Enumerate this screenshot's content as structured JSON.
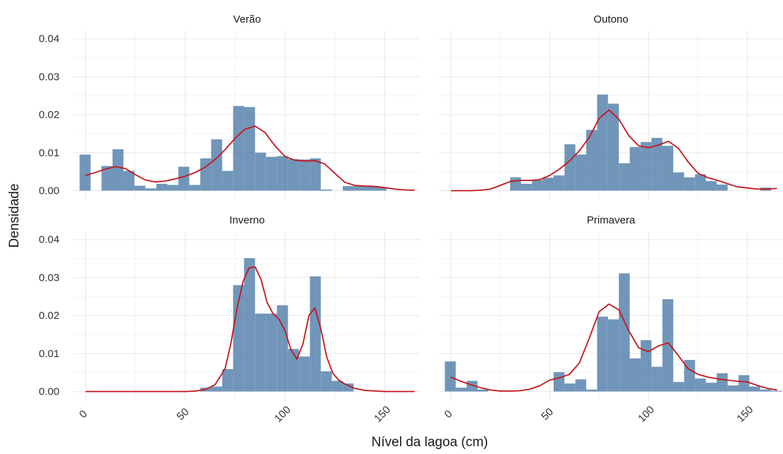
{
  "chart_data": {
    "type": "histogram",
    "xlabel": "Nível da lagoa (cm)",
    "ylabel": "Densidade",
    "xlim": [
      -6,
      168
    ],
    "ylim": [
      -0.0025,
      0.042
    ],
    "x_ticks": [
      0,
      50,
      100,
      150
    ],
    "y_ticks": [
      0.0,
      0.01,
      0.02,
      0.03,
      0.04
    ],
    "y_tick_labels": [
      "0.00",
      "0.01",
      "0.02",
      "0.03",
      "0.04"
    ],
    "bin_width": 5.5,
    "grid": true,
    "colors": {
      "bar": "#4e7ca8",
      "density": "#c4161c",
      "grid": "#ebebeb",
      "text": "#333333"
    },
    "panels": [
      {
        "title": "Verão",
        "bins": [
          {
            "x0": -3,
            "x1": 2.5,
            "y": 0.0095
          },
          {
            "x0": 2.5,
            "x1": 8,
            "y": 0
          },
          {
            "x0": 8,
            "x1": 13.5,
            "y": 0.0065
          },
          {
            "x0": 13.5,
            "x1": 19,
            "y": 0.0109
          },
          {
            "x0": 19,
            "x1": 24.5,
            "y": 0.0052
          },
          {
            "x0": 24.5,
            "x1": 30,
            "y": 0.0013
          },
          {
            "x0": 30,
            "x1": 35.5,
            "y": 0.0006
          },
          {
            "x0": 35.5,
            "x1": 41,
            "y": 0.0018
          },
          {
            "x0": 41,
            "x1": 46.5,
            "y": 0.0015
          },
          {
            "x0": 46.5,
            "x1": 52,
            "y": 0.0063
          },
          {
            "x0": 52,
            "x1": 57.5,
            "y": 0.0015
          },
          {
            "x0": 57.5,
            "x1": 63,
            "y": 0.0085
          },
          {
            "x0": 63,
            "x1": 68.5,
            "y": 0.0135
          },
          {
            "x0": 68.5,
            "x1": 74,
            "y": 0.0052
          },
          {
            "x0": 74,
            "x1": 79.5,
            "y": 0.0223
          },
          {
            "x0": 79.5,
            "x1": 85,
            "y": 0.022
          },
          {
            "x0": 85,
            "x1": 90.5,
            "y": 0.01
          },
          {
            "x0": 90.5,
            "x1": 96,
            "y": 0.0089
          },
          {
            "x0": 96,
            "x1": 101.5,
            "y": 0.0091
          },
          {
            "x0": 101.5,
            "x1": 107,
            "y": 0.0083
          },
          {
            "x0": 107,
            "x1": 112.5,
            "y": 0.0082
          },
          {
            "x0": 112.5,
            "x1": 118,
            "y": 0.0085
          },
          {
            "x0": 118,
            "x1": 123.5,
            "y": 0.0003
          },
          {
            "x0": 123.5,
            "x1": 129,
            "y": 0
          },
          {
            "x0": 129,
            "x1": 134.5,
            "y": 0.0012
          },
          {
            "x0": 134.5,
            "x1": 140,
            "y": 0.0012
          },
          {
            "x0": 140,
            "x1": 145.5,
            "y": 0.0011
          },
          {
            "x0": 145.5,
            "x1": 151,
            "y": 0.0009
          }
        ],
        "density": {
          "x": [
            0,
            5,
            10,
            15,
            20,
            25,
            30,
            35,
            40,
            45,
            50,
            55,
            60,
            65,
            70,
            75,
            80,
            85,
            90,
            95,
            100,
            105,
            110,
            115,
            120,
            125,
            130,
            135,
            140,
            145,
            150,
            155,
            160,
            165
          ],
          "y": [
            0.004,
            0.0048,
            0.0057,
            0.0063,
            0.0058,
            0.0042,
            0.0028,
            0.0023,
            0.0025,
            0.0031,
            0.0038,
            0.0048,
            0.0062,
            0.0082,
            0.0108,
            0.0138,
            0.0162,
            0.017,
            0.0153,
            0.0118,
            0.009,
            0.008,
            0.0078,
            0.0079,
            0.007,
            0.0046,
            0.0022,
            0.0014,
            0.0012,
            0.0011,
            0.0008,
            0.0004,
            0.0002,
            0.0001
          ]
        }
      },
      {
        "title": "Outono",
        "bins": [
          {
            "x0": 30,
            "x1": 35.5,
            "y": 0.0035
          },
          {
            "x0": 35.5,
            "x1": 41,
            "y": 0.0018
          },
          {
            "x0": 41,
            "x1": 46.5,
            "y": 0.0028
          },
          {
            "x0": 46.5,
            "x1": 52,
            "y": 0.0034
          },
          {
            "x0": 52,
            "x1": 57.5,
            "y": 0.004
          },
          {
            "x0": 57.5,
            "x1": 63,
            "y": 0.0122
          },
          {
            "x0": 63,
            "x1": 68.5,
            "y": 0.0095
          },
          {
            "x0": 68.5,
            "x1": 74,
            "y": 0.016
          },
          {
            "x0": 74,
            "x1": 79.5,
            "y": 0.0253
          },
          {
            "x0": 79.5,
            "x1": 85,
            "y": 0.0229
          },
          {
            "x0": 85,
            "x1": 90.5,
            "y": 0.0072
          },
          {
            "x0": 90.5,
            "x1": 96,
            "y": 0.0115
          },
          {
            "x0": 96,
            "x1": 101.5,
            "y": 0.0128
          },
          {
            "x0": 101.5,
            "x1": 107,
            "y": 0.0139
          },
          {
            "x0": 107,
            "x1": 112.5,
            "y": 0.0118
          },
          {
            "x0": 112.5,
            "x1": 118,
            "y": 0.0048
          },
          {
            "x0": 118,
            "x1": 123.5,
            "y": 0.0035
          },
          {
            "x0": 123.5,
            "x1": 129,
            "y": 0.0043
          },
          {
            "x0": 129,
            "x1": 134.5,
            "y": 0.0025
          },
          {
            "x0": 134.5,
            "x1": 140,
            "y": 0.0016
          },
          {
            "x0": 140,
            "x1": 145.5,
            "y": 0
          },
          {
            "x0": 145.5,
            "x1": 151,
            "y": 0
          },
          {
            "x0": 151,
            "x1": 156.5,
            "y": 0
          },
          {
            "x0": 156.5,
            "x1": 162,
            "y": 0.0008
          }
        ],
        "density": {
          "x": [
            0,
            5,
            10,
            15,
            20,
            25,
            30,
            35,
            40,
            45,
            50,
            55,
            60,
            65,
            70,
            75,
            80,
            85,
            90,
            95,
            100,
            105,
            110,
            115,
            120,
            125,
            130,
            135,
            140,
            145,
            150,
            155,
            160,
            165
          ],
          "y": [
            0.0,
            0.0,
            0.0,
            0.0001,
            0.0004,
            0.0014,
            0.0024,
            0.0027,
            0.0027,
            0.0029,
            0.004,
            0.0057,
            0.0078,
            0.0105,
            0.014,
            0.019,
            0.0212,
            0.0188,
            0.0145,
            0.0118,
            0.0113,
            0.012,
            0.013,
            0.0112,
            0.0076,
            0.0046,
            0.0034,
            0.0027,
            0.0018,
            0.001,
            0.0007,
            0.0004,
            0.0004,
            0.0006
          ]
        }
      },
      {
        "title": "Inverno",
        "bins": [
          {
            "x0": 57.5,
            "x1": 63,
            "y": 0.001
          },
          {
            "x0": 63,
            "x1": 68.5,
            "y": 0.0013
          },
          {
            "x0": 68.5,
            "x1": 74,
            "y": 0.0059
          },
          {
            "x0": 74,
            "x1": 79.5,
            "y": 0.028
          },
          {
            "x0": 79.5,
            "x1": 85,
            "y": 0.0351
          },
          {
            "x0": 85,
            "x1": 90.5,
            "y": 0.0205
          },
          {
            "x0": 90.5,
            "x1": 96,
            "y": 0.0205
          },
          {
            "x0": 96,
            "x1": 101.5,
            "y": 0.0227
          },
          {
            "x0": 101.5,
            "x1": 107,
            "y": 0.0112
          },
          {
            "x0": 107,
            "x1": 112.5,
            "y": 0.0092
          },
          {
            "x0": 112.5,
            "x1": 118,
            "y": 0.0303
          },
          {
            "x0": 118,
            "x1": 123.5,
            "y": 0.0053
          },
          {
            "x0": 123.5,
            "x1": 129,
            "y": 0.0028
          },
          {
            "x0": 129,
            "x1": 134.5,
            "y": 0.0021
          }
        ],
        "density": {
          "x": [
            0,
            10,
            20,
            30,
            40,
            50,
            55,
            60,
            65,
            70,
            73,
            76,
            79,
            82,
            85,
            88,
            91,
            94,
            97,
            100,
            103,
            106,
            109,
            112,
            115,
            118,
            121,
            124,
            127,
            130,
            135,
            140,
            150,
            160,
            165
          ],
          "y": [
            0.0,
            0.0,
            0.0,
            0.0,
            0.0,
            0.0,
            0.0001,
            0.0005,
            0.0018,
            0.006,
            0.013,
            0.022,
            0.029,
            0.0325,
            0.0328,
            0.0295,
            0.0235,
            0.0205,
            0.019,
            0.016,
            0.011,
            0.0085,
            0.0125,
            0.02,
            0.022,
            0.0165,
            0.009,
            0.0048,
            0.003,
            0.002,
            0.0008,
            0.0003,
            0.0,
            0.0,
            0.0
          ]
        }
      },
      {
        "title": "Primavera",
        "bins": [
          {
            "x0": -3,
            "x1": 2.5,
            "y": 0.0079
          },
          {
            "x0": 2.5,
            "x1": 8,
            "y": 0.001
          },
          {
            "x0": 8,
            "x1": 13.5,
            "y": 0.0028
          },
          {
            "x0": 13.5,
            "x1": 19,
            "y": 0.0005
          },
          {
            "x0": 52,
            "x1": 57.5,
            "y": 0.0051
          },
          {
            "x0": 57.5,
            "x1": 63,
            "y": 0.0021
          },
          {
            "x0": 63,
            "x1": 68.5,
            "y": 0.0032
          },
          {
            "x0": 68.5,
            "x1": 74,
            "y": 0.0005
          },
          {
            "x0": 74,
            "x1": 79.5,
            "y": 0.0197
          },
          {
            "x0": 79.5,
            "x1": 85,
            "y": 0.019
          },
          {
            "x0": 85,
            "x1": 90.5,
            "y": 0.0311
          },
          {
            "x0": 90.5,
            "x1": 96,
            "y": 0.0087
          },
          {
            "x0": 96,
            "x1": 101.5,
            "y": 0.0135
          },
          {
            "x0": 101.5,
            "x1": 107,
            "y": 0.0065
          },
          {
            "x0": 107,
            "x1": 112.5,
            "y": 0.0243
          },
          {
            "x0": 112.5,
            "x1": 118,
            "y": 0.0025
          },
          {
            "x0": 118,
            "x1": 123.5,
            "y": 0.0083
          },
          {
            "x0": 123.5,
            "x1": 129,
            "y": 0.0034
          },
          {
            "x0": 129,
            "x1": 134.5,
            "y": 0.0023
          },
          {
            "x0": 134.5,
            "x1": 140,
            "y": 0.0048
          },
          {
            "x0": 140,
            "x1": 145.5,
            "y": 0.0016
          },
          {
            "x0": 145.5,
            "x1": 151,
            "y": 0.0043
          },
          {
            "x0": 151,
            "x1": 156.5,
            "y": 0.0013
          },
          {
            "x0": 156.5,
            "x1": 162,
            "y": 0.0005
          },
          {
            "x0": 162,
            "x1": 167.5,
            "y": 0.0002
          }
        ],
        "density": {
          "x": [
            0,
            5,
            10,
            15,
            20,
            25,
            30,
            35,
            40,
            45,
            50,
            55,
            60,
            65,
            70,
            75,
            80,
            85,
            90,
            95,
            100,
            105,
            110,
            115,
            120,
            125,
            130,
            135,
            140,
            145,
            150,
            155,
            160,
            165
          ],
          "y": [
            0.0038,
            0.0027,
            0.0018,
            0.001,
            0.0004,
            0.0001,
            0.0001,
            0.0002,
            0.0006,
            0.0015,
            0.003,
            0.0036,
            0.0045,
            0.0075,
            0.014,
            0.021,
            0.023,
            0.0215,
            0.016,
            0.0115,
            0.0105,
            0.012,
            0.0128,
            0.0095,
            0.006,
            0.0045,
            0.0038,
            0.0033,
            0.003,
            0.0027,
            0.0025,
            0.0016,
            0.0008,
            0.0004
          ]
        }
      }
    ]
  }
}
